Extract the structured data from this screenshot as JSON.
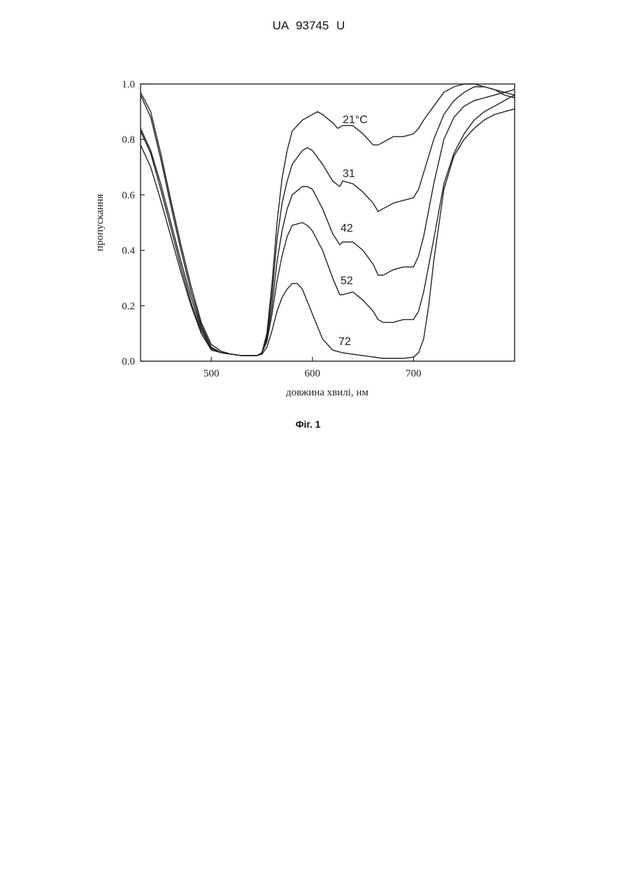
{
  "header": {
    "doc_number": "UA   93745   U"
  },
  "figure": {
    "caption": "Фіг. 1"
  },
  "chart_data": {
    "type": "line",
    "title": "",
    "xlabel": "довжина хвилі, нм",
    "ylabel": "пропускання",
    "xlim": [
      430,
      800
    ],
    "ylim": [
      0,
      1
    ],
    "xticks": [
      500,
      600,
      700
    ],
    "xtick_labels": [
      "500",
      "600",
      "700"
    ],
    "yticks": [
      0,
      0.2,
      0.4,
      0.6,
      0.8,
      1.0
    ],
    "ytick_labels": [
      "0.0",
      "0.2",
      "0.4",
      "0.6",
      "0.8",
      "1.0"
    ],
    "grid": false,
    "legend": "none",
    "series": [
      {
        "label_text": "21",
        "label_unit": "°C",
        "x": [
          430,
          440,
          450,
          460,
          470,
          480,
          490,
          500,
          510,
          520,
          530,
          540,
          545,
          550,
          555,
          560,
          565,
          570,
          575,
          580,
          590,
          600,
          605,
          610,
          620,
          625,
          630,
          640,
          650,
          660,
          665,
          670,
          680,
          690,
          700,
          705,
          710,
          720,
          730,
          740,
          750,
          760,
          770,
          780,
          790,
          800
        ],
        "y": [
          0.97,
          0.9,
          0.75,
          0.58,
          0.42,
          0.27,
          0.14,
          0.06,
          0.035,
          0.025,
          0.02,
          0.02,
          0.02,
          0.03,
          0.1,
          0.28,
          0.5,
          0.66,
          0.76,
          0.83,
          0.87,
          0.89,
          0.9,
          0.89,
          0.86,
          0.84,
          0.85,
          0.85,
          0.82,
          0.78,
          0.78,
          0.79,
          0.81,
          0.81,
          0.82,
          0.84,
          0.87,
          0.92,
          0.97,
          0.99,
          1.0,
          1.0,
          0.99,
          0.98,
          0.97,
          0.96
        ]
      },
      {
        "label_text": "31",
        "label_unit": "",
        "x": [
          430,
          440,
          450,
          460,
          470,
          480,
          490,
          500,
          510,
          520,
          530,
          540,
          545,
          550,
          555,
          560,
          565,
          570,
          575,
          580,
          590,
          595,
          600,
          610,
          620,
          627,
          630,
          640,
          650,
          660,
          665,
          670,
          680,
          690,
          700,
          705,
          710,
          720,
          730,
          740,
          750,
          760,
          770,
          780,
          790,
          800
        ],
        "y": [
          0.96,
          0.88,
          0.73,
          0.56,
          0.4,
          0.25,
          0.13,
          0.05,
          0.03,
          0.025,
          0.02,
          0.02,
          0.02,
          0.03,
          0.09,
          0.24,
          0.44,
          0.57,
          0.65,
          0.71,
          0.76,
          0.77,
          0.76,
          0.71,
          0.65,
          0.63,
          0.65,
          0.64,
          0.61,
          0.57,
          0.54,
          0.55,
          0.57,
          0.58,
          0.59,
          0.62,
          0.68,
          0.8,
          0.89,
          0.94,
          0.97,
          0.99,
          0.99,
          0.98,
          0.96,
          0.95
        ]
      },
      {
        "label_text": "42",
        "label_unit": "",
        "x": [
          430,
          440,
          450,
          460,
          470,
          480,
          490,
          500,
          510,
          520,
          530,
          540,
          545,
          550,
          555,
          560,
          565,
          570,
          575,
          580,
          590,
          595,
          600,
          610,
          620,
          627,
          630,
          640,
          650,
          660,
          665,
          670,
          680,
          690,
          700,
          705,
          710,
          720,
          730,
          740,
          750,
          760,
          770,
          780,
          790,
          800
        ],
        "y": [
          0.84,
          0.76,
          0.64,
          0.5,
          0.36,
          0.23,
          0.12,
          0.05,
          0.03,
          0.025,
          0.02,
          0.02,
          0.02,
          0.03,
          0.08,
          0.2,
          0.36,
          0.47,
          0.55,
          0.6,
          0.63,
          0.63,
          0.62,
          0.55,
          0.46,
          0.42,
          0.43,
          0.43,
          0.4,
          0.35,
          0.31,
          0.31,
          0.33,
          0.34,
          0.34,
          0.38,
          0.45,
          0.64,
          0.8,
          0.88,
          0.92,
          0.94,
          0.95,
          0.96,
          0.97,
          0.98
        ]
      },
      {
        "label_text": "52",
        "label_unit": "",
        "x": [
          430,
          440,
          450,
          460,
          470,
          480,
          490,
          500,
          510,
          520,
          530,
          540,
          545,
          550,
          555,
          560,
          565,
          570,
          575,
          580,
          590,
          595,
          600,
          610,
          620,
          627,
          630,
          640,
          650,
          660,
          665,
          670,
          680,
          690,
          700,
          705,
          710,
          720,
          730,
          740,
          750,
          760,
          770,
          780,
          790,
          800
        ],
        "y": [
          0.83,
          0.75,
          0.62,
          0.48,
          0.34,
          0.21,
          0.11,
          0.045,
          0.03,
          0.025,
          0.02,
          0.02,
          0.02,
          0.03,
          0.07,
          0.17,
          0.29,
          0.38,
          0.45,
          0.49,
          0.5,
          0.49,
          0.47,
          0.4,
          0.3,
          0.24,
          0.24,
          0.25,
          0.22,
          0.18,
          0.15,
          0.14,
          0.14,
          0.15,
          0.15,
          0.18,
          0.25,
          0.44,
          0.64,
          0.75,
          0.82,
          0.87,
          0.9,
          0.92,
          0.94,
          0.96
        ]
      },
      {
        "label_text": "72",
        "label_unit": "",
        "x": [
          430,
          440,
          450,
          460,
          470,
          480,
          490,
          500,
          510,
          520,
          530,
          540,
          545,
          550,
          555,
          560,
          565,
          570,
          575,
          580,
          585,
          590,
          600,
          610,
          620,
          630,
          640,
          650,
          660,
          670,
          680,
          690,
          700,
          705,
          710,
          715,
          720,
          730,
          740,
          750,
          760,
          770,
          780,
          790,
          800
        ],
        "y": [
          0.78,
          0.7,
          0.58,
          0.45,
          0.32,
          0.2,
          0.1,
          0.04,
          0.03,
          0.025,
          0.02,
          0.02,
          0.02,
          0.025,
          0.05,
          0.11,
          0.18,
          0.23,
          0.26,
          0.28,
          0.28,
          0.26,
          0.17,
          0.08,
          0.04,
          0.03,
          0.025,
          0.02,
          0.015,
          0.01,
          0.01,
          0.01,
          0.015,
          0.03,
          0.08,
          0.2,
          0.36,
          0.62,
          0.74,
          0.8,
          0.84,
          0.87,
          0.89,
          0.9,
          0.91
        ]
      }
    ]
  }
}
